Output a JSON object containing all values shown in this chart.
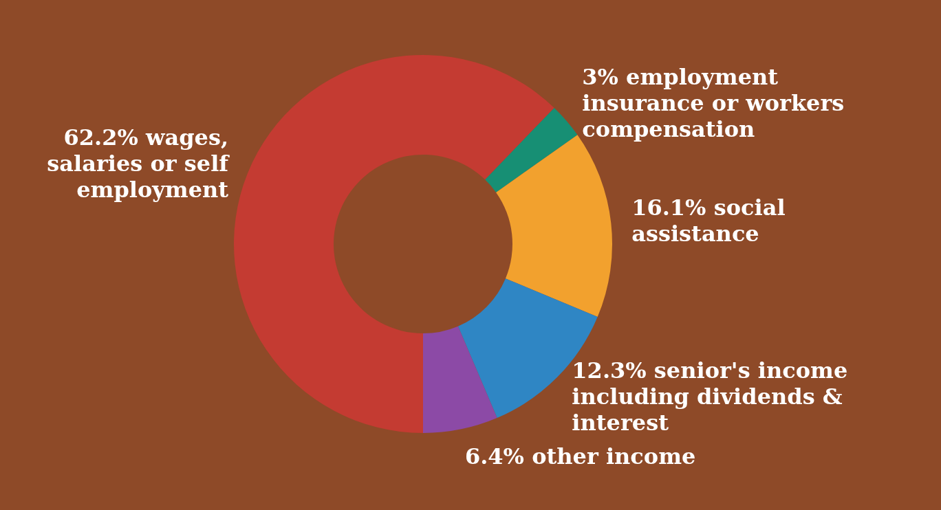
{
  "chart_data": {
    "type": "donut",
    "categories": [
      "wages, salaries or self employment",
      "employment insurance or workers compensation",
      "social assistance",
      "senior's income including dividends & interest",
      "other income"
    ],
    "values": [
      62.2,
      3,
      16.1,
      12.3,
      6.4
    ],
    "colors": [
      "#c43b32",
      "#178f74",
      "#f2a12e",
      "#2f86c4",
      "#8c4aa6"
    ],
    "value_labels": [
      "62.2%",
      "3%",
      "16.1%",
      "12.3%",
      "6.4%"
    ],
    "legend": false
  }
}
